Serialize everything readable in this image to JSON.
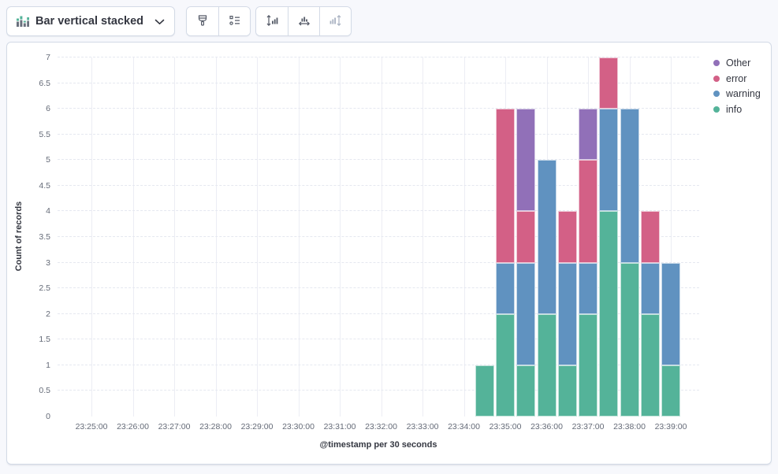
{
  "toolbar": {
    "chart_type": {
      "label": "Bar vertical stacked"
    },
    "buttons": [
      {
        "name": "visual-options-button",
        "icon": "paint-brush-icon",
        "disabled": false
      },
      {
        "name": "legend-settings-button",
        "icon": "legend-list-icon",
        "disabled": false
      },
      {
        "name": "left-axis-button",
        "icon": "vertical-axis-icon",
        "disabled": false
      },
      {
        "name": "bottom-axis-button",
        "icon": "horizontal-axis-icon",
        "disabled": false
      },
      {
        "name": "right-axis-button",
        "icon": "right-axis-icon",
        "disabled": true
      }
    ]
  },
  "chart_data": {
    "type": "bar",
    "stacked": true,
    "orientation": "vertical",
    "ylabel": "Count of records",
    "xlabel": "@timestamp per 30 seconds",
    "ylim": [
      0,
      7
    ],
    "y_tick_step": 0.5,
    "y_ticks": [
      "0",
      "0.5",
      "1",
      "1.5",
      "2",
      "2.5",
      "3",
      "3.5",
      "4",
      "4.5",
      "5",
      "5.5",
      "6",
      "6.5",
      "7"
    ],
    "x_ticks": [
      "23:25:00",
      "23:26:00",
      "23:27:00",
      "23:28:00",
      "23:29:00",
      "23:30:00",
      "23:31:00",
      "23:32:00",
      "23:33:00",
      "23:34:00",
      "23:35:00",
      "23:36:00",
      "23:37:00",
      "23:38:00",
      "23:39:00"
    ],
    "grid": {
      "vertical": true,
      "horizontal_dashed": true
    },
    "categories": [
      "23:34:30",
      "23:35:00",
      "23:35:30",
      "23:36:00",
      "23:36:30",
      "23:37:00",
      "23:37:30",
      "23:38:00",
      "23:38:30",
      "23:39:00"
    ],
    "series": [
      {
        "name": "info",
        "color": "#54B399",
        "values": [
          1,
          2,
          1,
          2,
          1,
          2,
          4,
          3,
          2,
          1
        ]
      },
      {
        "name": "warning",
        "color": "#6092C0",
        "values": [
          0,
          1,
          2,
          3,
          2,
          1,
          2,
          3,
          1,
          2
        ]
      },
      {
        "name": "error",
        "color": "#D36086",
        "values": [
          0,
          3,
          1,
          0,
          1,
          2,
          1,
          0,
          1,
          0
        ]
      },
      {
        "name": "Other",
        "color": "#9170B8",
        "values": [
          0,
          0,
          2,
          0,
          0,
          1,
          0,
          0,
          0,
          0
        ]
      }
    ],
    "legend": {
      "position": "right",
      "items": [
        {
          "label": "Other",
          "color": "#9170B8"
        },
        {
          "label": "error",
          "color": "#D36086"
        },
        {
          "label": "warning",
          "color": "#6092C0"
        },
        {
          "label": "info",
          "color": "#54B399"
        }
      ]
    }
  }
}
